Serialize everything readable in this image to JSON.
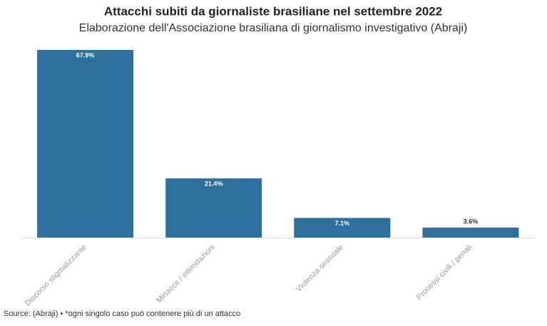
{
  "chart_data": {
    "type": "bar",
    "title": "Attacchi subiti da giornaliste brasiliane nel settembre 2022",
    "subtitle": "Elaborazione dell'Associazione brasiliana di giornalismo investigativo (Abraji)",
    "categories": [
      "Discorso stigmatizzante",
      "Minacce / intimidazioni",
      "Violenza sessuale",
      "Processi civili / penali"
    ],
    "values": [
      67.9,
      21.4,
      7.1,
      3.6
    ],
    "value_labels": [
      "67.9%",
      "21.4%",
      "7.1%",
      "3.6%"
    ],
    "color": "#2f6f9b",
    "source": "Source: (Abraji) • *ogni singolo caso può contenere più di un attacco"
  }
}
